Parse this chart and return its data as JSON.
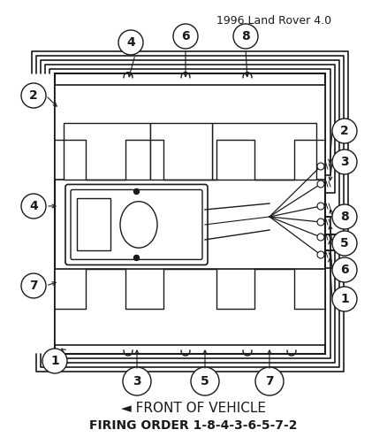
{
  "title": "1996 Land Rover 4.0",
  "footer_line1": "◄ FRONT OF VEHICLE",
  "footer_line2": "FIRING ORDER 1-8-4-3-6-5-7-2",
  "bg_color": "#ffffff",
  "line_color": "#1a1a1a",
  "figsize": [
    4.38,
    5.03
  ],
  "dpi": 100
}
